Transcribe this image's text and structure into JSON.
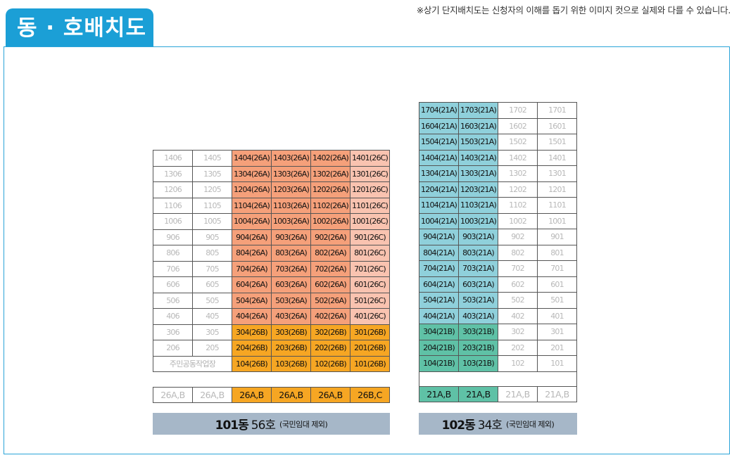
{
  "header": {
    "title": "동 · 호배치도",
    "notice": "※상기 단지배치도는 신청자의 이해를 돕기 위한 이미지 컷으로 실제와 다를 수 있습니다."
  },
  "buildings": [
    {
      "id": "b101",
      "rows": [
        [
          [
            "1406",
            "n"
          ],
          [
            "1405",
            "n"
          ],
          [
            "1404(26A)",
            "s26A"
          ],
          [
            "1403(26A)",
            "s26A"
          ],
          [
            "1402(26A)",
            "s26A"
          ],
          [
            "1401(26C)",
            "s26C"
          ]
        ],
        [
          [
            "1306",
            "n"
          ],
          [
            "1305",
            "n"
          ],
          [
            "1304(26A)",
            "s26A"
          ],
          [
            "1303(26A)",
            "s26A"
          ],
          [
            "1302(26A)",
            "s26A"
          ],
          [
            "1301(26C)",
            "s26C"
          ]
        ],
        [
          [
            "1206",
            "n"
          ],
          [
            "1205",
            "n"
          ],
          [
            "1204(26A)",
            "s26A"
          ],
          [
            "1203(26A)",
            "s26A"
          ],
          [
            "1202(26A)",
            "s26A"
          ],
          [
            "1201(26C)",
            "s26C"
          ]
        ],
        [
          [
            "1106",
            "n"
          ],
          [
            "1105",
            "n"
          ],
          [
            "1104(26A)",
            "s26A"
          ],
          [
            "1103(26A)",
            "s26A"
          ],
          [
            "1102(26A)",
            "s26A"
          ],
          [
            "1101(26C)",
            "s26C"
          ]
        ],
        [
          [
            "1006",
            "n"
          ],
          [
            "1005",
            "n"
          ],
          [
            "1004(26A)",
            "s26A"
          ],
          [
            "1003(26A)",
            "s26A"
          ],
          [
            "1002(26A)",
            "s26A"
          ],
          [
            "1001(26C)",
            "s26C"
          ]
        ],
        [
          [
            "906",
            "n"
          ],
          [
            "905",
            "n"
          ],
          [
            "904(26A)",
            "s26A"
          ],
          [
            "903(26A)",
            "s26A"
          ],
          [
            "902(26A)",
            "s26A"
          ],
          [
            "901(26C)",
            "s26C"
          ]
        ],
        [
          [
            "806",
            "n"
          ],
          [
            "805",
            "n"
          ],
          [
            "804(26A)",
            "s26A"
          ],
          [
            "803(26A)",
            "s26A"
          ],
          [
            "802(26A)",
            "s26A"
          ],
          [
            "801(26C)",
            "s26C"
          ]
        ],
        [
          [
            "706",
            "n"
          ],
          [
            "705",
            "n"
          ],
          [
            "704(26A)",
            "s26A"
          ],
          [
            "703(26A)",
            "s26A"
          ],
          [
            "702(26A)",
            "s26A"
          ],
          [
            "701(26C)",
            "s26C"
          ]
        ],
        [
          [
            "606",
            "n"
          ],
          [
            "605",
            "n"
          ],
          [
            "604(26A)",
            "s26A"
          ],
          [
            "603(26A)",
            "s26A"
          ],
          [
            "602(26A)",
            "s26A"
          ],
          [
            "601(26C)",
            "s26C"
          ]
        ],
        [
          [
            "506",
            "n"
          ],
          [
            "505",
            "n"
          ],
          [
            "504(26A)",
            "s26A"
          ],
          [
            "503(26A)",
            "s26A"
          ],
          [
            "502(26A)",
            "s26A"
          ],
          [
            "501(26C)",
            "s26C"
          ]
        ],
        [
          [
            "406",
            "n"
          ],
          [
            "405",
            "n"
          ],
          [
            "404(26A)",
            "s26A"
          ],
          [
            "403(26A)",
            "s26A"
          ],
          [
            "402(26A)",
            "s26A"
          ],
          [
            "401(26C)",
            "s26C"
          ]
        ],
        [
          [
            "306",
            "n"
          ],
          [
            "305",
            "n"
          ],
          [
            "304(26B)",
            "s26B"
          ],
          [
            "303(26B)",
            "s26B"
          ],
          [
            "302(26B)",
            "s26B"
          ],
          [
            "301(26B)",
            "s26B"
          ]
        ],
        [
          [
            "206",
            "n"
          ],
          [
            "205",
            "n"
          ],
          [
            "204(26B)",
            "s26B"
          ],
          [
            "203(26B)",
            "s26B"
          ],
          [
            "202(26B)",
            "s26B"
          ],
          [
            "201(26B)",
            "s26B"
          ]
        ],
        [
          [
            "주민공동작업장",
            "facility",
            2
          ],
          [
            "104(26B)",
            "s26B"
          ],
          [
            "103(26B)",
            "s26B"
          ],
          [
            "102(26B)",
            "s26B"
          ],
          [
            "101(26B)",
            "s26B"
          ]
        ]
      ],
      "legend": [
        [
          "26A,B",
          "n"
        ],
        [
          "26A,B",
          "n"
        ],
        [
          "26A,B",
          "s26B"
        ],
        [
          "26A,B",
          "s26B"
        ],
        [
          "26A,B",
          "s26B"
        ],
        [
          "26B,C",
          "s26B"
        ]
      ],
      "summary": {
        "name": "101동",
        "count": "56호",
        "note": "(국민임대 제외)"
      }
    },
    {
      "id": "b102",
      "rows": [
        [
          [
            "1704(21A)",
            "s21A"
          ],
          [
            "1703(21A)",
            "s21A"
          ],
          [
            "1702",
            "n"
          ],
          [
            "1701",
            "n"
          ]
        ],
        [
          [
            "1604(21A)",
            "s21A"
          ],
          [
            "1603(21A)",
            "s21A"
          ],
          [
            "1602",
            "n"
          ],
          [
            "1601",
            "n"
          ]
        ],
        [
          [
            "1504(21A)",
            "s21A"
          ],
          [
            "1503(21A)",
            "s21A"
          ],
          [
            "1502",
            "n"
          ],
          [
            "1501",
            "n"
          ]
        ],
        [
          [
            "1404(21A)",
            "s21A"
          ],
          [
            "1403(21A)",
            "s21A"
          ],
          [
            "1402",
            "n"
          ],
          [
            "1401",
            "n"
          ]
        ],
        [
          [
            "1304(21A)",
            "s21A"
          ],
          [
            "1303(21A)",
            "s21A"
          ],
          [
            "1302",
            "n"
          ],
          [
            "1301",
            "n"
          ]
        ],
        [
          [
            "1204(21A)",
            "s21A"
          ],
          [
            "1203(21A)",
            "s21A"
          ],
          [
            "1202",
            "n"
          ],
          [
            "1201",
            "n"
          ]
        ],
        [
          [
            "1104(21A)",
            "s21A"
          ],
          [
            "1103(21A)",
            "s21A"
          ],
          [
            "1102",
            "n"
          ],
          [
            "1101",
            "n"
          ]
        ],
        [
          [
            "1004(21A)",
            "s21A"
          ],
          [
            "1003(21A)",
            "s21A"
          ],
          [
            "1002",
            "n"
          ],
          [
            "1001",
            "n"
          ]
        ],
        [
          [
            "904(21A)",
            "s21A"
          ],
          [
            "903(21A)",
            "s21A"
          ],
          [
            "902",
            "n"
          ],
          [
            "901",
            "n"
          ]
        ],
        [
          [
            "804(21A)",
            "s21A"
          ],
          [
            "803(21A)",
            "s21A"
          ],
          [
            "802",
            "n"
          ],
          [
            "801",
            "n"
          ]
        ],
        [
          [
            "704(21A)",
            "s21A"
          ],
          [
            "703(21A)",
            "s21A"
          ],
          [
            "702",
            "n"
          ],
          [
            "701",
            "n"
          ]
        ],
        [
          [
            "604(21A)",
            "s21A"
          ],
          [
            "603(21A)",
            "s21A"
          ],
          [
            "602",
            "n"
          ],
          [
            "601",
            "n"
          ]
        ],
        [
          [
            "504(21A)",
            "s21A"
          ],
          [
            "503(21A)",
            "s21A"
          ],
          [
            "502",
            "n"
          ],
          [
            "501",
            "n"
          ]
        ],
        [
          [
            "404(21A)",
            "s21A"
          ],
          [
            "403(21A)",
            "s21A"
          ],
          [
            "402",
            "n"
          ],
          [
            "401",
            "n"
          ]
        ],
        [
          [
            "304(21B)",
            "s21B"
          ],
          [
            "303(21B)",
            "s21B"
          ],
          [
            "302",
            "n"
          ],
          [
            "301",
            "n"
          ]
        ],
        [
          [
            "204(21B)",
            "s21B"
          ],
          [
            "203(21B)",
            "s21B"
          ],
          [
            "202",
            "n"
          ],
          [
            "201",
            "n"
          ]
        ],
        [
          [
            "104(21B)",
            "s21B"
          ],
          [
            "103(21B)",
            "s21B"
          ],
          [
            "102",
            "n"
          ],
          [
            "101",
            "n"
          ]
        ],
        [
          [
            "",
            "empty-row",
            4
          ]
        ]
      ],
      "legend": [
        [
          "21A,B",
          "s21B"
        ],
        [
          "21A,B",
          "s21B"
        ],
        [
          "21A,B",
          "n"
        ],
        [
          "21A,B",
          "n"
        ]
      ],
      "summary": {
        "name": "102동",
        "count": "34호",
        "note": "(국민임대 제외)"
      }
    }
  ]
}
